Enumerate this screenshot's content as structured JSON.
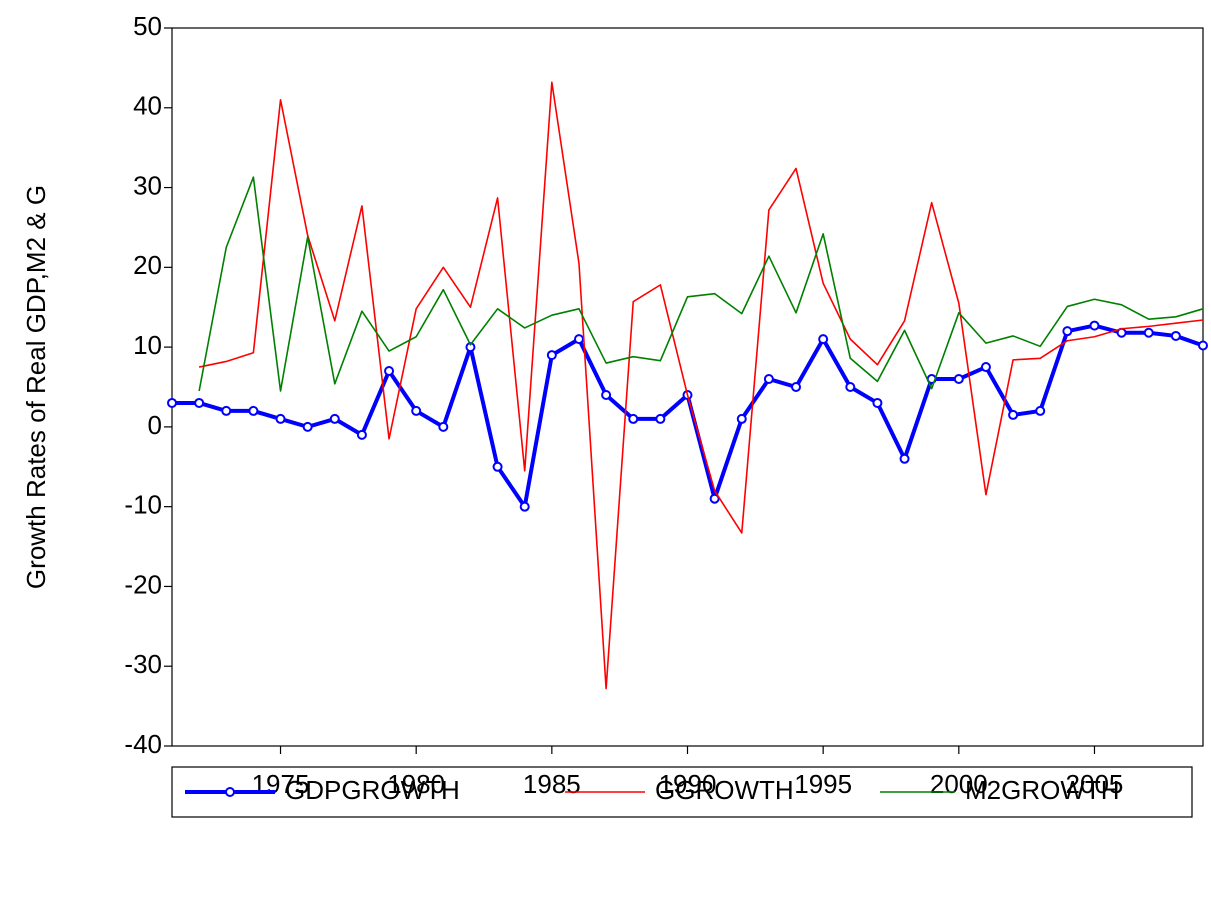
{
  "chart_data": {
    "type": "line",
    "y_label": "Growth Rates of Real GDP,M2 & G",
    "x": [
      1971,
      1972,
      1973,
      1974,
      1975,
      1976,
      1977,
      1978,
      1979,
      1980,
      1981,
      1982,
      1983,
      1984,
      1985,
      1986,
      1987,
      1988,
      1989,
      1990,
      1991,
      1992,
      1993,
      1994,
      1995,
      1996,
      1997,
      1998,
      1999,
      2000,
      2001,
      2002,
      2003,
      2004,
      2005,
      2006,
      2007,
      2008,
      2009
    ],
    "xlim": [
      1971,
      2009
    ],
    "xticks": [
      1975,
      1980,
      1985,
      1990,
      1995,
      2000,
      2005
    ],
    "ylim": [
      -40,
      50
    ],
    "yticks": [
      -40,
      -30,
      -20,
      -10,
      0,
      10,
      20,
      30,
      40,
      50
    ],
    "grid": false,
    "legend": "bottom",
    "series": [
      {
        "name": "GDPGROWTH",
        "color": "#0000ff",
        "width": 4,
        "marker": "circle",
        "values": [
          3.0,
          3.0,
          2.0,
          2.0,
          1.0,
          0.0,
          1.0,
          -1.0,
          7.0,
          2.0,
          0.0,
          10.0,
          -5.0,
          -10.0,
          9.0,
          11.0,
          4.0,
          1.0,
          1.0,
          4.0,
          -9.0,
          1.0,
          6.0,
          5.0,
          11.0,
          5.0,
          3.0,
          -4.0,
          6.0,
          6.0,
          7.5,
          1.5,
          2.0,
          12.0,
          12.7,
          11.8,
          11.8,
          11.4,
          10.2
        ]
      },
      {
        "name": "GGROWTH",
        "color": "#ff0000",
        "width": 1.6,
        "values": [
          null,
          7.5,
          8.2,
          9.3,
          41,
          24,
          13.3,
          27.7,
          -1.5,
          14.8,
          20,
          15,
          28.7,
          -5.5,
          43.2,
          20.5,
          -32.8,
          15.7,
          17.8,
          4,
          -8,
          -13.3,
          27.2,
          32.4,
          18,
          11,
          7.8,
          13.3,
          28.1,
          15.5,
          -8.5,
          8.4,
          8.6,
          10.8,
          11.3,
          12.3,
          12.6,
          13,
          13.4
        ]
      },
      {
        "name": "M2GROWTH",
        "color": "#008000",
        "width": 1.6,
        "values": [
          null,
          4.5,
          22.5,
          31.3,
          4.5,
          23.8,
          5.4,
          14.5,
          9.5,
          11.3,
          17.2,
          10.3,
          14.8,
          12.4,
          14,
          14.8,
          8,
          8.8,
          8.3,
          16.3,
          16.7,
          14.2,
          21.4,
          14.3,
          24.2,
          8.6,
          5.7,
          12.1,
          4.8,
          14.3,
          10.5,
          11.4,
          10.1,
          15.1,
          16,
          15.3,
          13.5,
          13.8,
          14.8
        ]
      }
    ]
  }
}
